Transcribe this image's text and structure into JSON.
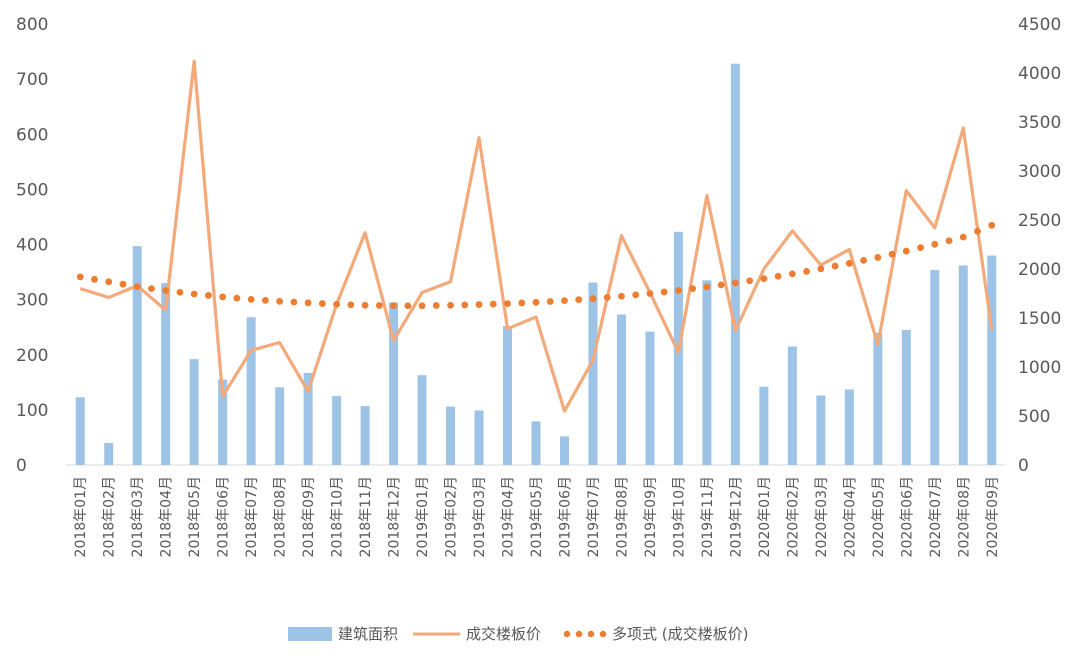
{
  "chart_data": {
    "type": "bar+line",
    "categories": [
      "2018年01月",
      "2018年02月",
      "2018年03月",
      "2018年04月",
      "2018年05月",
      "2018年06月",
      "2018年07月",
      "2018年08月",
      "2018年09月",
      "2018年10月",
      "2018年11月",
      "2018年12月",
      "2019年01月",
      "2019年02月",
      "2019年03月",
      "2019年04月",
      "2019年05月",
      "2019年06月",
      "2019年07月",
      "2019年08月",
      "2019年09月",
      "2019年10月",
      "2019年11月",
      "2019年12月",
      "2020年01月",
      "2020年02月",
      "2020年03月",
      "2020年04月",
      "2020年05月",
      "2020年06月",
      "2020年07月",
      "2020年08月",
      "2020年09月"
    ],
    "series": [
      {
        "name": "建筑面积",
        "kind": "bar",
        "axis": "left",
        "color": "#9DC3E6",
        "values": [
          123,
          40,
          397,
          330,
          192,
          155,
          268,
          141,
          167,
          125,
          107,
          295,
          163,
          106,
          99,
          252,
          79,
          52,
          331,
          273,
          242,
          423,
          335,
          728,
          142,
          215,
          126,
          137,
          240,
          245,
          354,
          362,
          380
        ]
      },
      {
        "name": "成交楼板价",
        "kind": "line",
        "axis": "right",
        "color": "#F4A97A",
        "values": [
          1800,
          1710,
          1830,
          1580,
          4120,
          700,
          1170,
          1250,
          750,
          1640,
          2370,
          1270,
          1760,
          1870,
          3340,
          1390,
          1510,
          550,
          1070,
          2340,
          1760,
          1150,
          2750,
          1370,
          2000,
          2390,
          2040,
          2200,
          1230,
          2800,
          2420,
          3440,
          1380
        ]
      },
      {
        "name": "多项式 (成交楼板价)",
        "kind": "trendline",
        "axis": "right",
        "color": "#ED7D31",
        "values": [
          1920,
          1870,
          1820,
          1780,
          1745,
          1715,
          1690,
          1670,
          1655,
          1640,
          1630,
          1625,
          1625,
          1630,
          1637,
          1647,
          1660,
          1677,
          1698,
          1722,
          1750,
          1782,
          1818,
          1858,
          1902,
          1950,
          2002,
          2058,
          2118,
          2183,
          2252,
          2325,
          2446
        ]
      }
    ],
    "y_left": {
      "min": 0,
      "max": 800,
      "ticks": [
        "0",
        "100",
        "200",
        "300",
        "400",
        "500",
        "600",
        "700",
        "800"
      ]
    },
    "y_right": {
      "min": 0,
      "max": 4500,
      "ticks": [
        "0",
        "500",
        "1000",
        "1500",
        "2000",
        "2500",
        "3000",
        "3500",
        "4000",
        "4500"
      ]
    },
    "grid": false,
    "legend": {
      "position": "bottom",
      "items": [
        "建筑面积",
        "成交楼板价",
        "多项式 (成交楼板价)"
      ]
    }
  }
}
